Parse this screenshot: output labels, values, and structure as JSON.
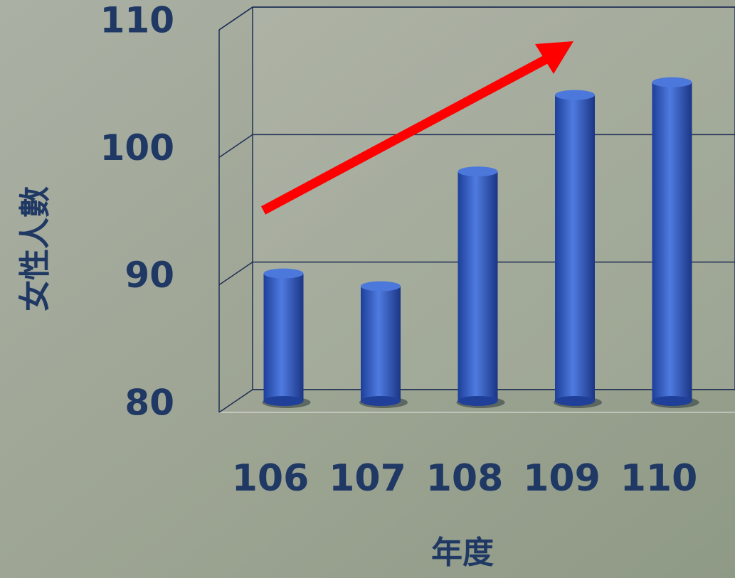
{
  "chart_data": {
    "type": "bar",
    "x_label": "年度",
    "y_label": "女性人數",
    "categories": [
      "106",
      "107",
      "108",
      "109",
      "110"
    ],
    "values": [
      90,
      89,
      98,
      104,
      105
    ],
    "color": "#3a64c4",
    "ylim": [
      80,
      110
    ],
    "yticks": [
      80,
      90,
      100,
      110
    ],
    "grid": true
  }
}
